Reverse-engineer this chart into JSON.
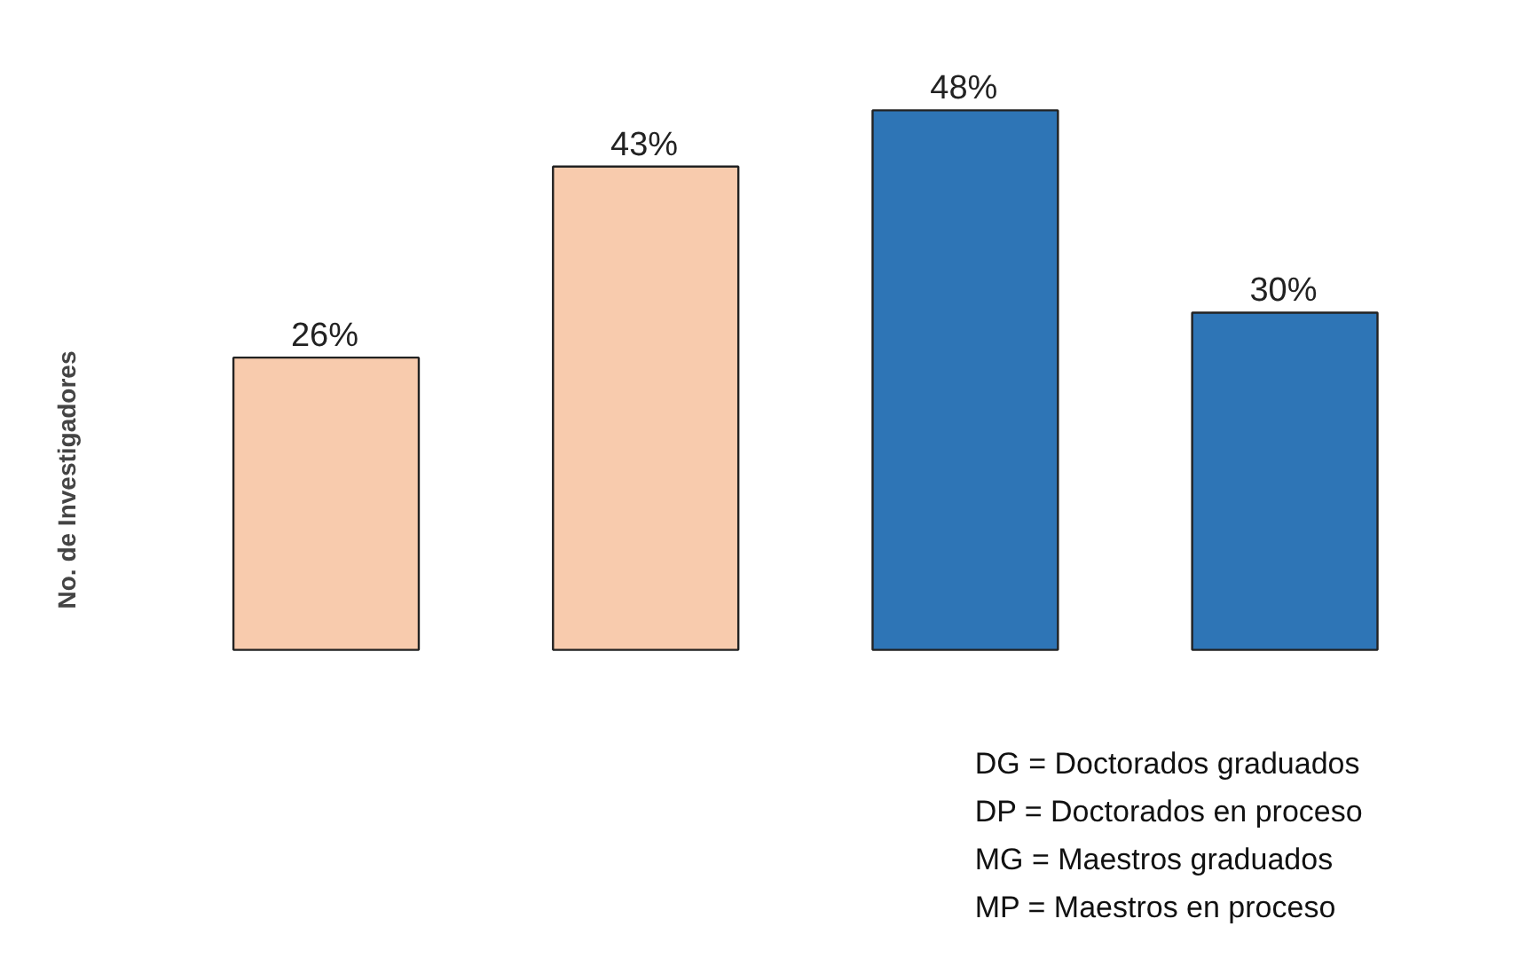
{
  "chart_data": {
    "type": "bar",
    "ylabel": "No. de Investigadores",
    "categories": [
      null,
      null,
      null,
      null
    ],
    "values": [
      26,
      43,
      48,
      30
    ],
    "colors": [
      "#f8cbad",
      "#f8cbad",
      "#2e75b6",
      "#2e75b6"
    ],
    "value_labels": [
      "26%",
      "43%",
      "48%",
      "30%"
    ],
    "grid": false,
    "annotations": [
      "DG = Doctorados graduados",
      "DP = Doctorados en proceso",
      "MG = Maestros graduados",
      "MP = Maestros en proceso"
    ]
  }
}
